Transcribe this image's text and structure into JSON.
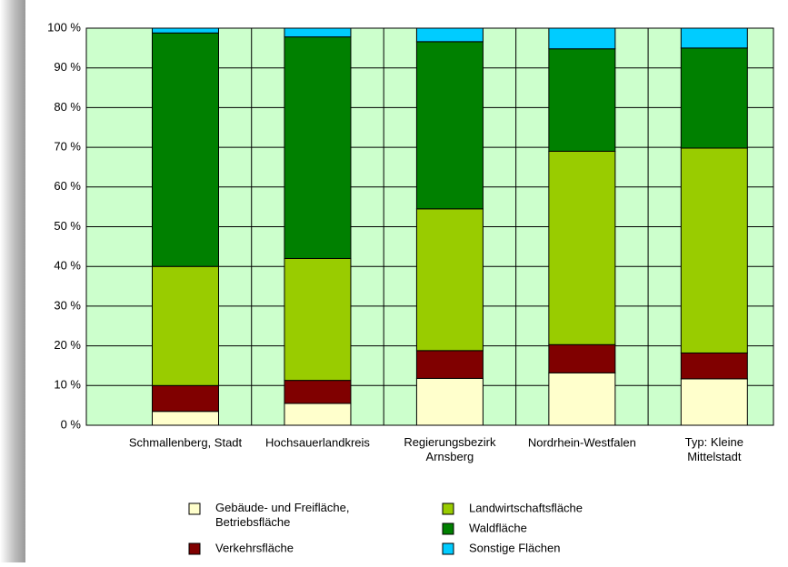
{
  "chart_data": {
    "type": "stacked_bar",
    "categories": [
      "Schmallenberg, Stadt",
      "Hochsauerlandkreis",
      "Regierungsbezirk\nArnsberg",
      "Nordrhein-Westfalen",
      "Typ: Kleine\nMittelstadt"
    ],
    "series": [
      {
        "name": "Gebäude- und Freifläche,\nBetriebsfläche",
        "color": "#ffffcc",
        "values": [
          3.5,
          5.5,
          11.8,
          13.2,
          11.7
        ]
      },
      {
        "name": "Verkehrsfläche",
        "color": "#800000",
        "values": [
          6.5,
          5.8,
          7.0,
          7.1,
          6.5
        ]
      },
      {
        "name": "Landwirtschaftsfläche",
        "color": "#99cc00",
        "values": [
          30.0,
          30.7,
          35.7,
          48.7,
          51.6
        ]
      },
      {
        "name": "Waldfläche",
        "color": "#008000",
        "values": [
          58.8,
          55.8,
          42.1,
          25.8,
          25.2
        ]
      },
      {
        "name": "Sonstige Flächen",
        "color": "#00ccff",
        "values": [
          1.2,
          2.2,
          3.4,
          5.2,
          5.0
        ]
      }
    ],
    "ylim": [
      0,
      100
    ],
    "yticks": [
      {
        "value": 0,
        "label": "0 %"
      },
      {
        "value": 10,
        "label": "10 %"
      },
      {
        "value": 20,
        "label": "20 %"
      },
      {
        "value": 30,
        "label": "30 %"
      },
      {
        "value": 40,
        "label": "40 %"
      },
      {
        "value": 50,
        "label": "50 %"
      },
      {
        "value": 60,
        "label": "60 %"
      },
      {
        "value": 70,
        "label": "70 %"
      },
      {
        "value": 80,
        "label": "80 %"
      },
      {
        "value": 90,
        "label": "90 %"
      },
      {
        "value": 100,
        "label": "100 %"
      }
    ],
    "grid": true
  }
}
